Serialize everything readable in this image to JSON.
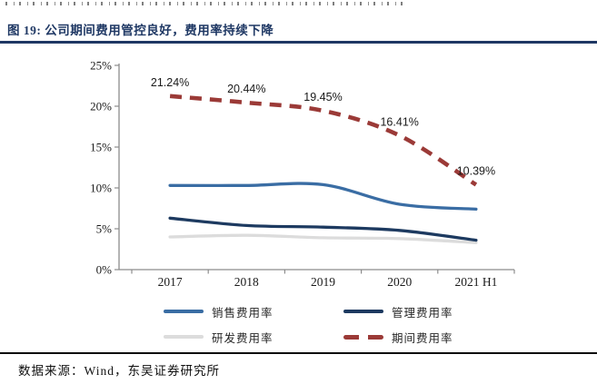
{
  "figure": {
    "title": "图 19:  公司期间费用管控良好，费用率持续下降",
    "source": "数据来源：Wind，东吴证券研究所"
  },
  "colors": {
    "title": "#1F3864",
    "rule": "#1F3864",
    "axis": "#8C8C8C",
    "tick_label": "#1a1a1a",
    "data_label": "#1a1a1a",
    "sales": "#3A6DA4",
    "management": "#1D3A60",
    "rnd": "#DCDCDC",
    "period": "#9B3A37"
  },
  "chart_data": {
    "type": "line",
    "title": "公司期间费用管控良好，费用率持续下降",
    "categories": [
      "2017",
      "2018",
      "2019",
      "2020",
      "2021 H1"
    ],
    "series": [
      {
        "name": "销售费用率",
        "values": [
          10.3,
          10.3,
          10.4,
          8.0,
          7.4
        ],
        "color_key": "sales",
        "style": "solid"
      },
      {
        "name": "管理费用率",
        "values": [
          6.3,
          5.4,
          5.2,
          4.8,
          3.6
        ],
        "color_key": "management",
        "style": "solid"
      },
      {
        "name": "研发费用率",
        "values": [
          4.0,
          4.2,
          3.9,
          3.8,
          3.3
        ],
        "color_key": "rnd",
        "style": "solid"
      },
      {
        "name": "期间费用率",
        "values": [
          21.24,
          20.44,
          19.45,
          16.41,
          10.39
        ],
        "color_key": "period",
        "style": "dashed",
        "data_labels": [
          "21.24%",
          "20.44%",
          "19.45%",
          "16.41%",
          "10.39%"
        ]
      }
    ],
    "xlabel": "",
    "ylabel": "",
    "ylim": [
      0,
      25
    ],
    "yticks": [
      "0%",
      "5%",
      "10%",
      "15%",
      "20%",
      "25%"
    ],
    "grid": false,
    "legend_position": "bottom"
  }
}
